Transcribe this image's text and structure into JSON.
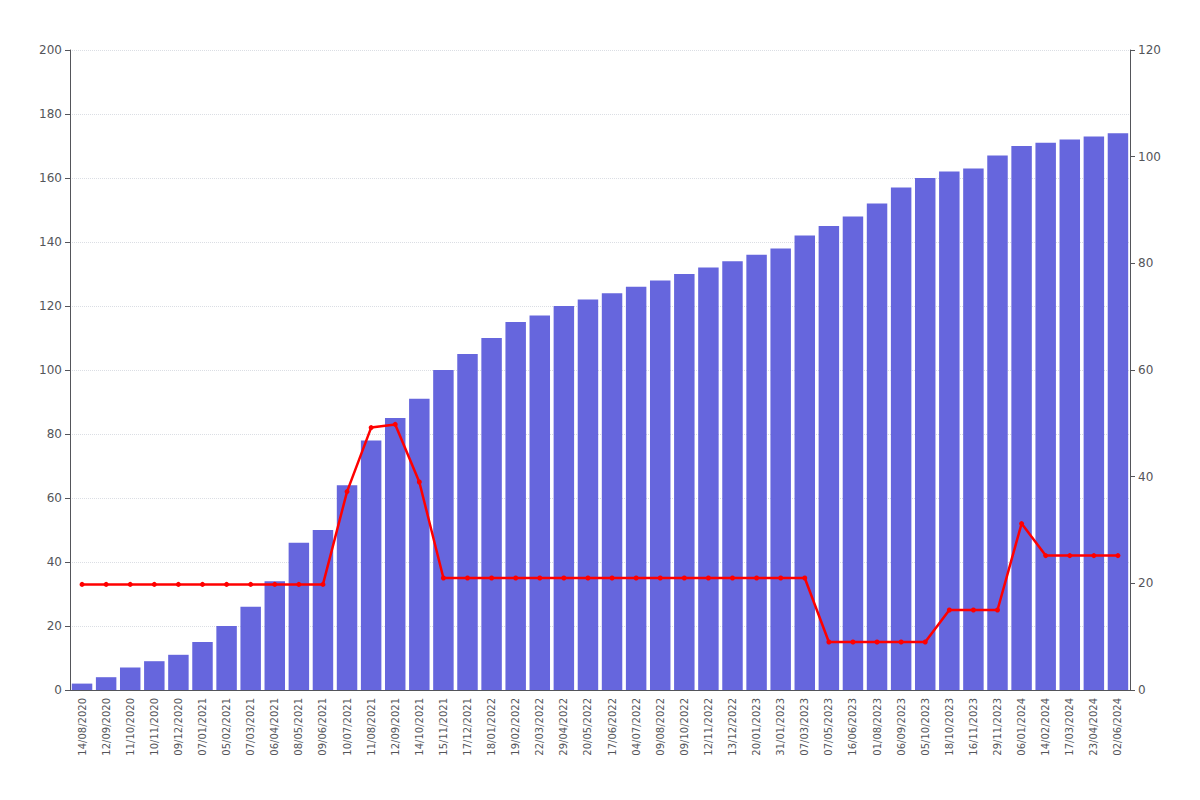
{
  "chart_data": {
    "type": "bar",
    "categories": [
      "14/08/2020",
      "12/09/2020",
      "11/10/2020",
      "10/11/2020",
      "09/12/2020",
      "07/01/2021",
      "05/02/2021",
      "07/03/2021",
      "06/04/2021",
      "08/05/2021",
      "09/06/2021",
      "10/07/2021",
      "11/08/2021",
      "12/09/2021",
      "14/10/2021",
      "15/11/2021",
      "17/12/2021",
      "18/01/2022",
      "19/02/2022",
      "22/03/2022",
      "29/04/2022",
      "20/05/2022",
      "17/06/2022",
      "04/07/2022",
      "09/08/2022",
      "09/10/2022",
      "12/11/2022",
      "13/12/2022",
      "20/01/2023",
      "31/01/2023",
      "07/03/2023",
      "07/05/2023",
      "16/06/2023",
      "01/08/2023",
      "06/09/2023",
      "05/10/2023",
      "18/10/2023",
      "16/11/2023",
      "29/11/2023",
      "06/01/2024",
      "14/02/2024",
      "17/03/2024",
      "23/04/2024",
      "02/06/2024"
    ],
    "series": [
      {
        "type": "bar",
        "color": "#6666dd",
        "values": [
          2,
          4,
          7,
          9,
          11,
          15,
          20,
          26,
          34,
          46,
          50,
          64,
          78,
          85,
          91,
          100,
          105,
          110,
          115,
          117,
          120,
          122,
          124,
          126,
          128,
          130,
          132,
          134,
          136,
          138,
          142,
          145,
          148,
          152,
          157,
          160,
          162,
          163,
          167,
          170,
          171,
          172,
          173,
          174
        ]
      },
      {
        "type": "line",
        "color": "#ff0000",
        "marker": "circle",
        "values": [
          33,
          33,
          33,
          33,
          33,
          33,
          33,
          33,
          33,
          33,
          33,
          62,
          82,
          83,
          65,
          35,
          35,
          35,
          35,
          35,
          35,
          35,
          35,
          35,
          35,
          35,
          35,
          35,
          35,
          35,
          35,
          15,
          15,
          15,
          15,
          15,
          25,
          25,
          25,
          52,
          42,
          42,
          42,
          42
        ]
      }
    ],
    "ylim": [
      0,
      200
    ],
    "yticks": [
      0,
      20,
      40,
      60,
      80,
      100,
      120,
      140,
      160,
      180,
      200
    ],
    "y2lim": [
      0,
      120
    ],
    "y2ticks": [
      0,
      20,
      40,
      60,
      80,
      100,
      120
    ],
    "grid": true
  }
}
